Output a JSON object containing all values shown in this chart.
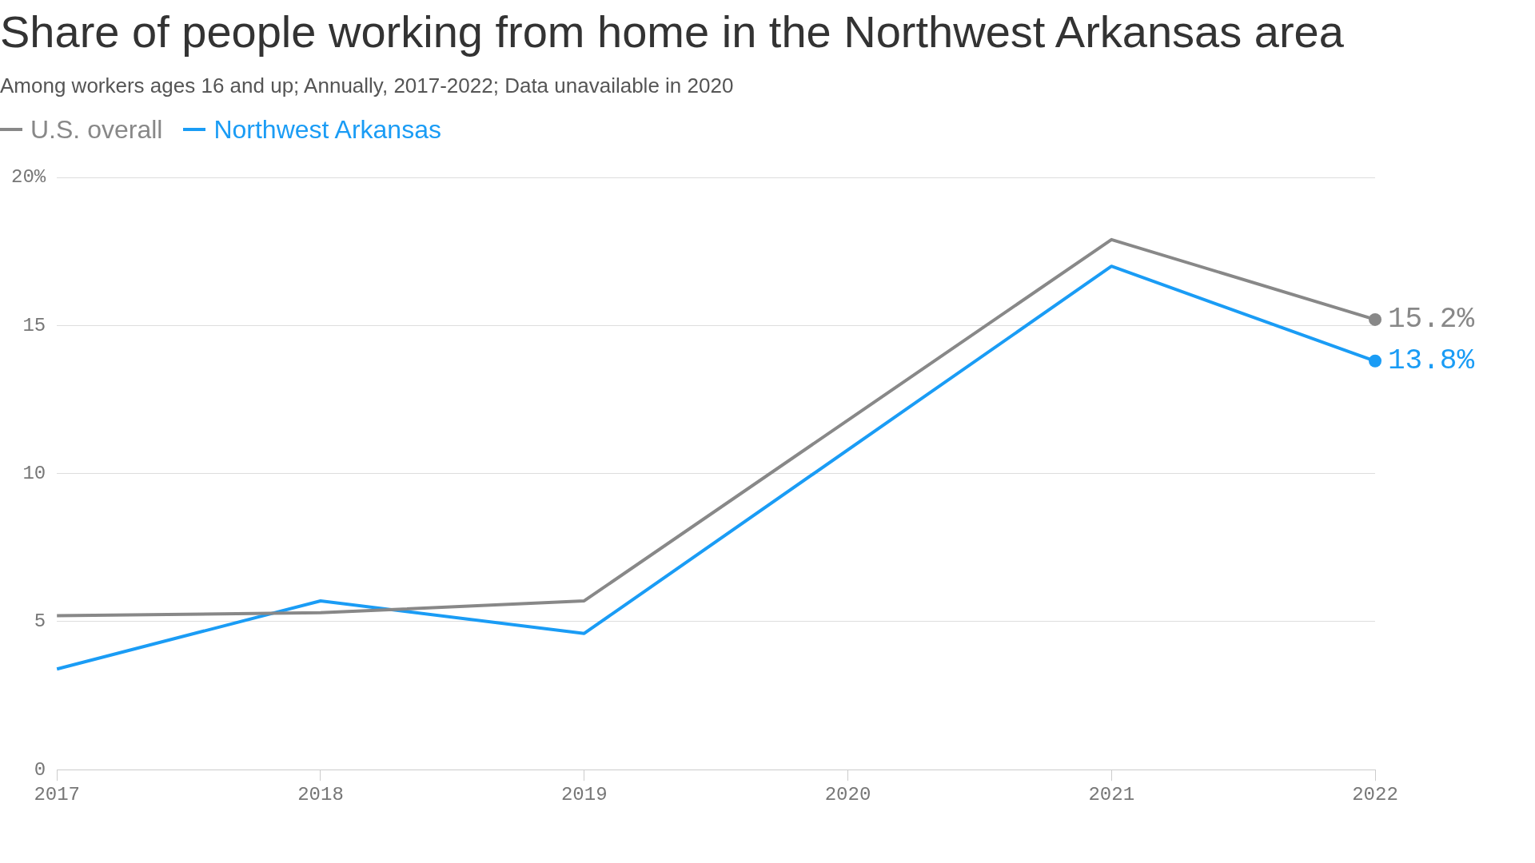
{
  "chart_data": {
    "type": "line",
    "title": "Share of people working from home in the Northwest Arkansas area",
    "subtitle": "Among workers ages 16 and up; Annually, 2017-2022; Data unavailable in 2020",
    "categories": [
      "2017",
      "2018",
      "2019",
      "2020",
      "2021",
      "2022"
    ],
    "series": [
      {
        "name": "U.S. overall",
        "color": "#888888",
        "values": [
          5.2,
          5.3,
          5.7,
          null,
          17.9,
          15.2
        ],
        "value_labels": [
          null,
          null,
          null,
          null,
          null,
          "15.2%"
        ]
      },
      {
        "name": "Northwest Arkansas",
        "color": "#1a9cf5",
        "values": [
          3.4,
          5.7,
          4.6,
          null,
          17.0,
          13.8
        ],
        "value_labels": [
          null,
          null,
          null,
          null,
          null,
          "13.8%"
        ]
      }
    ],
    "ylim": [
      0,
      20
    ],
    "yticks": [
      0,
      5,
      10,
      15,
      {
        "value": 20,
        "label": "20%"
      }
    ],
    "grid": "y",
    "legend": "top left",
    "line_style": "solid"
  }
}
